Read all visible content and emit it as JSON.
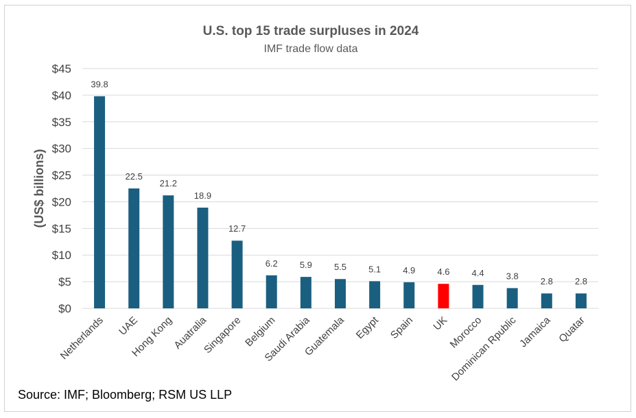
{
  "chart_data": {
    "type": "bar",
    "title": "U.S. top 15 trade surpluses in 2024",
    "subtitle": "IMF trade flow data",
    "ylabel": "(US$ billions)",
    "xlabel": "",
    "ylim": [
      0,
      45
    ],
    "ytick_values": [
      0,
      5,
      10,
      15,
      20,
      25,
      30,
      35,
      40,
      45
    ],
    "ytick_labels": [
      "$0",
      "$5",
      "$10",
      "$15",
      "$20",
      "$25",
      "$30",
      "$35",
      "$40",
      "$45"
    ],
    "grid": true,
    "categories": [
      "Netherlands",
      "UAE",
      "Hong Kong",
      "Auatralia",
      "Singapore",
      "Belgium",
      "Saudi Arabia",
      "Guatemala",
      "Egypt",
      "Spain",
      "UK",
      "Morocco",
      "Dominican Rpublic",
      "Jamaica",
      "Quatar"
    ],
    "values": [
      39.8,
      22.5,
      21.2,
      18.9,
      12.7,
      6.2,
      5.9,
      5.5,
      5.1,
      4.9,
      4.6,
      4.4,
      3.8,
      2.8,
      2.8
    ],
    "value_labels": [
      "39.8",
      "22.5",
      "21.2",
      "18.9",
      "12.7",
      "6.2",
      "5.9",
      "5.5",
      "5.1",
      "4.9",
      "4.6",
      "4.4",
      "3.8",
      "2.8",
      "2.8"
    ],
    "bar_color": "#1b5f80",
    "highlight_category": "UK",
    "highlight_color": "#ff0000",
    "gridline_color": "#d9d9d9"
  },
  "source": "Source: IMF; Bloomberg; RSM US LLP"
}
